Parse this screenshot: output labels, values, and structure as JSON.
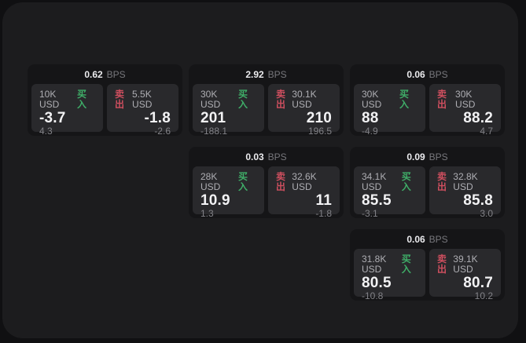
{
  "labels": {
    "bps": "BPS",
    "buy": "买入",
    "sell": "卖出"
  },
  "colors": {
    "buy": "#3fae68",
    "sell": "#cf4f5f"
  },
  "cards": [
    {
      "slot": {
        "col": 1,
        "row": 1
      },
      "bps": "0.62",
      "buy": {
        "amount": "10K USD",
        "price": "-3.7",
        "change": "4.3"
      },
      "sell": {
        "amount": "5.5K USD",
        "price": "-1.8",
        "change": "-2.6"
      }
    },
    {
      "slot": {
        "col": 2,
        "row": 1
      },
      "bps": "2.92",
      "buy": {
        "amount": "30K USD",
        "price": "201",
        "change": "-188.1"
      },
      "sell": {
        "amount": "30.1K USD",
        "price": "210",
        "change": "196.5"
      }
    },
    {
      "slot": {
        "col": 3,
        "row": 1
      },
      "bps": "0.06",
      "buy": {
        "amount": "30K USD",
        "price": "88",
        "change": "-4.9"
      },
      "sell": {
        "amount": "30K USD",
        "price": "88.2",
        "change": "4.7"
      }
    },
    {
      "slot": {
        "col": 2,
        "row": 2
      },
      "bps": "0.03",
      "buy": {
        "amount": "28K USD",
        "price": "10.9",
        "change": "1.3"
      },
      "sell": {
        "amount": "32.6K USD",
        "price": "11",
        "change": "-1.8"
      }
    },
    {
      "slot": {
        "col": 3,
        "row": 2
      },
      "bps": "0.09",
      "buy": {
        "amount": "34.1K USD",
        "price": "85.5",
        "change": "-3.1"
      },
      "sell": {
        "amount": "32.8K USD",
        "price": "85.8",
        "change": "3.0"
      }
    },
    {
      "slot": {
        "col": 3,
        "row": 3
      },
      "bps": "0.06",
      "buy": {
        "amount": "31.8K USD",
        "price": "80.5",
        "change": "-10.8"
      },
      "sell": {
        "amount": "39.1K USD",
        "price": "80.7",
        "change": "10.2"
      }
    }
  ]
}
